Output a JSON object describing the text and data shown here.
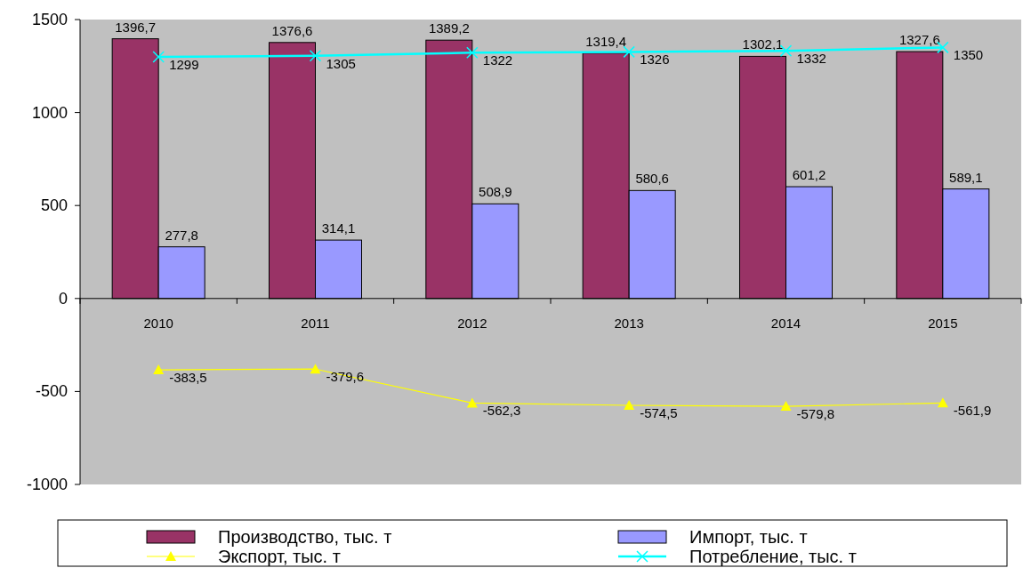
{
  "chart_data": {
    "type": "bar",
    "categories": [
      "2010",
      "2011",
      "2012",
      "2013",
      "2014",
      "2015"
    ],
    "series": [
      {
        "name": "Производство, тыс. т",
        "color": "#993366",
        "values": [
          1396.7,
          1376.6,
          1389.2,
          1319.4,
          1302.1,
          1327.6
        ],
        "value_labels": [
          "1396,7",
          "1376,6",
          "1389,2",
          "1319,4",
          "1302,1",
          "1327,6"
        ]
      },
      {
        "name": "Импорт, тыс. т",
        "color": "#9999ff",
        "values": [
          277.8,
          314.1,
          508.9,
          580.6,
          601.2,
          589.1
        ],
        "value_labels": [
          "277,8",
          "314,1",
          "508,9",
          "580,6",
          "601,2",
          "589,1"
        ]
      },
      {
        "name": "Экспорт, тыс. т",
        "type": "line",
        "color": "#ffff00",
        "marker": "triangle",
        "values": [
          -383.5,
          -379.6,
          -562.3,
          -574.5,
          -579.8,
          -561.9
        ],
        "value_labels": [
          "-383,5",
          "-379,6",
          "-562,3",
          "-574,5",
          "-579,8",
          "-561,9"
        ]
      },
      {
        "name": "Потребление, тыс. т",
        "type": "line",
        "color": "#00ffff",
        "marker": "cross",
        "values": [
          1299,
          1305,
          1322,
          1326,
          1332,
          1350
        ],
        "value_labels": [
          "1299",
          "1305",
          "1322",
          "1326",
          "1332",
          "1350"
        ]
      }
    ],
    "ylim": [
      -1000,
      1500
    ],
    "yticks": [
      -1000,
      -500,
      0,
      500,
      1000,
      1500
    ],
    "legend": "bottom"
  }
}
